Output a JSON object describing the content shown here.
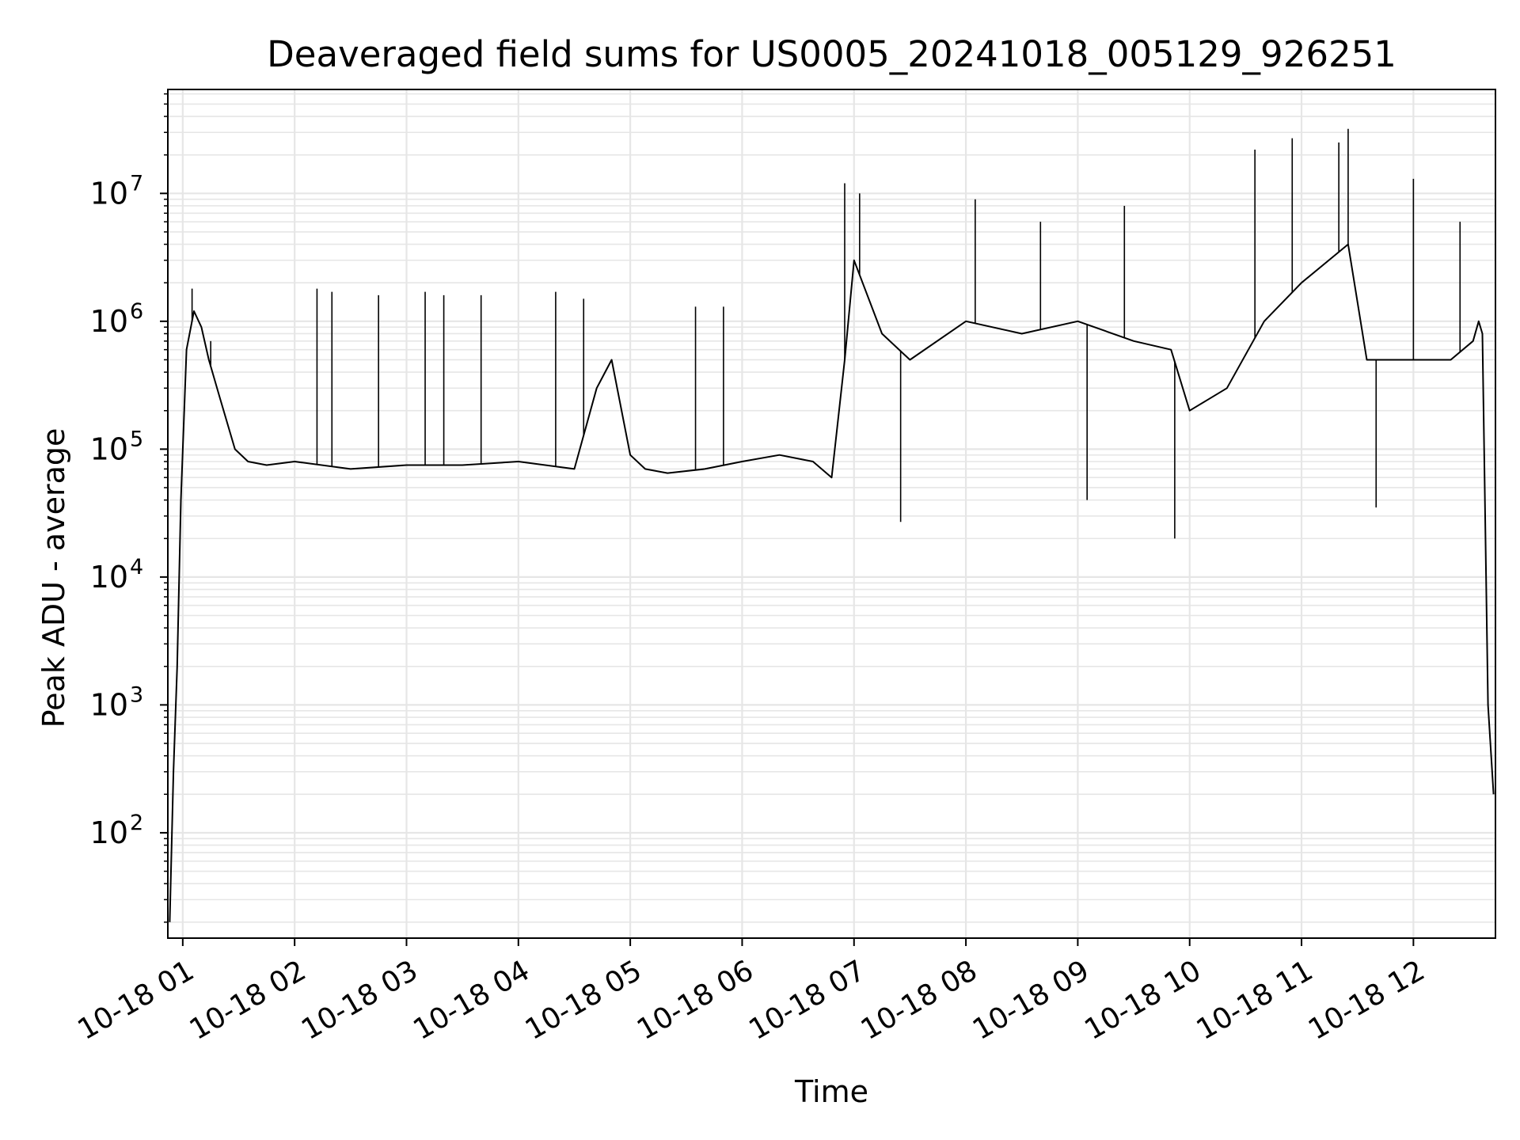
{
  "chart_data": {
    "type": "line",
    "title": "Deaveraged field sums for US0005_20241018_005129_926251",
    "xlabel": "Time",
    "ylabel": "Peak ADU - average",
    "y_scale": "log",
    "grid": "major and minor, light gray",
    "line_color": "#000000",
    "grid_color": "#e6e6e6",
    "xlim": [
      "2024-10-18 00:52",
      "2024-10-18 12:44"
    ],
    "ylim": [
      15,
      65000000
    ],
    "x_ticks": [
      "10-18 01",
      "10-18 02",
      "10-18 03",
      "10-18 04",
      "10-18 05",
      "10-18 06",
      "10-18 07",
      "10-18 08",
      "10-18 09",
      "10-18 10",
      "10-18 11",
      "10-18 12"
    ],
    "y_ticks": [
      {
        "base": "10",
        "exp": "2",
        "value": 100
      },
      {
        "base": "10",
        "exp": "3",
        "value": 1000
      },
      {
        "base": "10",
        "exp": "4",
        "value": 10000
      },
      {
        "base": "10",
        "exp": "5",
        "value": 100000
      },
      {
        "base": "10",
        "exp": "6",
        "value": 1000000
      },
      {
        "base": "10",
        "exp": "7",
        "value": 10000000
      }
    ],
    "series": [
      {
        "x": [
          "2024-10-18 00:53",
          "2024-10-18 00:55",
          "2024-10-18 00:57",
          "2024-10-18 00:59",
          "2024-10-18 01:02",
          "2024-10-18 01:06",
          "2024-10-18 01:10",
          "2024-10-18 01:14",
          "2024-10-18 01:20",
          "2024-10-18 01:28",
          "2024-10-18 01:35",
          "2024-10-18 01:45",
          "2024-10-18 02:00",
          "2024-10-18 02:30",
          "2024-10-18 03:00",
          "2024-10-18 03:30",
          "2024-10-18 04:00",
          "2024-10-18 04:30",
          "2024-10-18 04:42",
          "2024-10-18 04:50",
          "2024-10-18 05:00",
          "2024-10-18 05:08",
          "2024-10-18 05:20",
          "2024-10-18 05:40",
          "2024-10-18 06:00",
          "2024-10-18 06:20",
          "2024-10-18 06:38",
          "2024-10-18 06:48",
          "2024-10-18 06:55",
          "2024-10-18 07:00",
          "2024-10-18 07:15",
          "2024-10-18 07:30",
          "2024-10-18 08:00",
          "2024-10-18 08:30",
          "2024-10-18 09:00",
          "2024-10-18 09:30",
          "2024-10-18 09:50",
          "2024-10-18 10:00",
          "2024-10-18 10:20",
          "2024-10-18 10:40",
          "2024-10-18 11:00",
          "2024-10-18 11:25",
          "2024-10-18 11:35",
          "2024-10-18 11:50",
          "2024-10-18 12:05",
          "2024-10-18 12:20",
          "2024-10-18 12:32",
          "2024-10-18 12:35",
          "2024-10-18 12:37",
          "2024-10-18 12:40",
          "2024-10-18 12:43"
        ],
        "y": [
          20,
          300,
          2000,
          40000,
          600000,
          1200000,
          900000,
          500000,
          250000,
          100000,
          80000,
          75000,
          80000,
          70000,
          75000,
          75000,
          80000,
          70000,
          300000,
          500000,
          90000,
          70000,
          65000,
          70000,
          80000,
          90000,
          80000,
          60000,
          500000,
          3000000,
          800000,
          500000,
          1000000,
          800000,
          1000000,
          700000,
          600000,
          200000,
          300000,
          1000000,
          2000000,
          4000000,
          500000,
          500000,
          500000,
          500000,
          700000,
          1000000,
          800000,
          1000,
          200
        ],
        "spikes": [
          {
            "x": "2024-10-18 01:05",
            "y": 1800000
          },
          {
            "x": "2024-10-18 01:15",
            "y": 700000
          },
          {
            "x": "2024-10-18 02:12",
            "y": 1800000
          },
          {
            "x": "2024-10-18 02:20",
            "y": 1700000
          },
          {
            "x": "2024-10-18 02:45",
            "y": 1600000
          },
          {
            "x": "2024-10-18 03:10",
            "y": 1700000
          },
          {
            "x": "2024-10-18 03:20",
            "y": 1600000
          },
          {
            "x": "2024-10-18 03:40",
            "y": 1600000
          },
          {
            "x": "2024-10-18 04:20",
            "y": 1700000
          },
          {
            "x": "2024-10-18 04:35",
            "y": 1500000
          },
          {
            "x": "2024-10-18 05:35",
            "y": 1300000
          },
          {
            "x": "2024-10-18 05:50",
            "y": 1300000
          },
          {
            "x": "2024-10-18 06:55",
            "y": 12000000
          },
          {
            "x": "2024-10-18 07:03",
            "y": 10000000
          },
          {
            "x": "2024-10-18 07:25",
            "y": 27000
          },
          {
            "x": "2024-10-18 08:05",
            "y": 9000000
          },
          {
            "x": "2024-10-18 08:40",
            "y": 6000000
          },
          {
            "x": "2024-10-18 09:05",
            "y": 40000
          },
          {
            "x": "2024-10-18 09:25",
            "y": 8000000
          },
          {
            "x": "2024-10-18 09:52",
            "y": 20000
          },
          {
            "x": "2024-10-18 10:35",
            "y": 22000000
          },
          {
            "x": "2024-10-18 10:55",
            "y": 27000000
          },
          {
            "x": "2024-10-18 11:20",
            "y": 25000000
          },
          {
            "x": "2024-10-18 11:25",
            "y": 32000000
          },
          {
            "x": "2024-10-18 11:40",
            "y": 35000
          },
          {
            "x": "2024-10-18 12:00",
            "y": 13000000
          },
          {
            "x": "2024-10-18 12:25",
            "y": 6000000
          }
        ]
      }
    ]
  }
}
